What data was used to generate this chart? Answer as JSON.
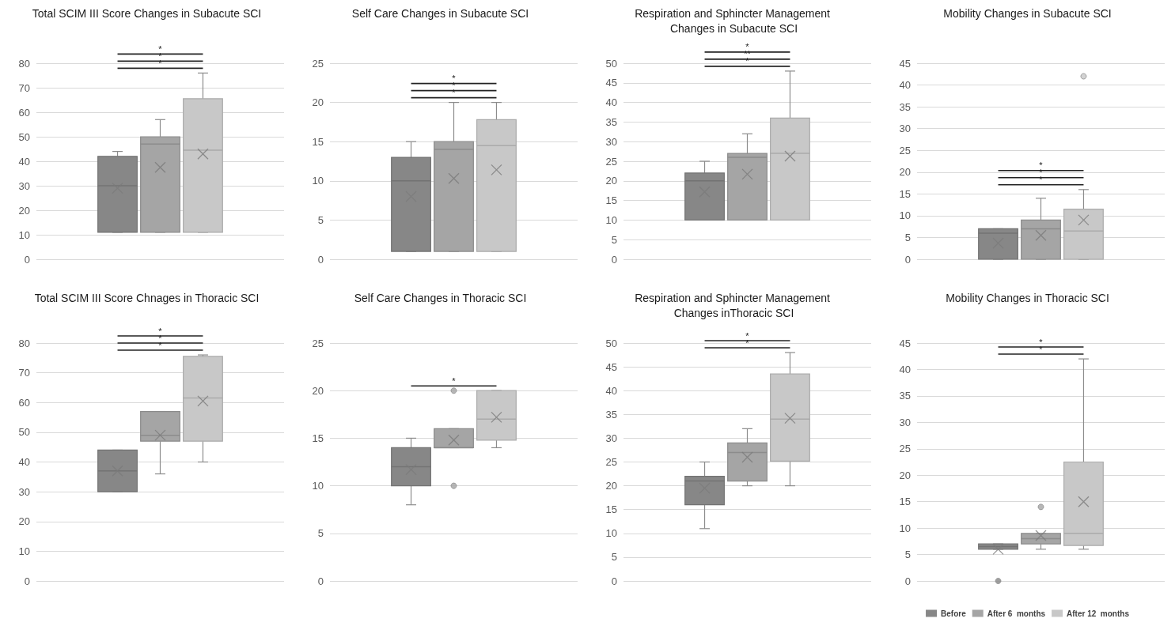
{
  "chart_data": [
    {
      "type": "box",
      "title": "Total SCIM III Score Changes in Subacute SCI",
      "categories": [
        null
      ],
      "ylim": [
        0,
        80
      ],
      "yticks": [
        0,
        10,
        20,
        30,
        40,
        50,
        60,
        70,
        80
      ],
      "grid": "y",
      "series": [
        {
          "color": "#878787",
          "boxes": [
            {
              "low": 11,
              "q1": 11,
              "median": 30,
              "q3": 42,
              "high": 44,
              "mean": 29
            }
          ]
        },
        {
          "color": "#a5a5a5",
          "boxes": [
            {
              "low": 11,
              "q1": 11,
              "median": 47,
              "q3": 50,
              "high": 57,
              "mean": 37.5
            }
          ]
        },
        {
          "color": "#c8c8c8",
          "boxes": [
            {
              "low": 11,
              "q1": 11,
              "median": 44.5,
              "q3": 65.5,
              "high": 76,
              "mean": 43
            }
          ]
        }
      ],
      "annotations": [
        "*",
        "*",
        "*"
      ]
    },
    {
      "type": "box",
      "title": "Self Care Changes in Subacute SCI",
      "categories": [
        null
      ],
      "ylim": [
        0,
        25
      ],
      "yticks": [
        0,
        5,
        10,
        15,
        20,
        25
      ],
      "grid": "y",
      "series": [
        {
          "color": "#878787",
          "boxes": [
            {
              "low": 1,
              "q1": 1,
              "median": 10,
              "q3": 13,
              "high": 15,
              "mean": 8
            }
          ]
        },
        {
          "color": "#a5a5a5",
          "boxes": [
            {
              "low": 1,
              "q1": 1,
              "median": 14,
              "q3": 15,
              "high": 20,
              "mean": 10.3
            }
          ]
        },
        {
          "color": "#c8c8c8",
          "boxes": [
            {
              "low": 1,
              "q1": 1,
              "median": 14.5,
              "q3": 17.8,
              "high": 20,
              "mean": 11.4
            }
          ]
        }
      ],
      "annotations": [
        "*",
        "*",
        "*"
      ]
    },
    {
      "type": "box",
      "title": "Respiration and Sphincter Management Changes in Subacute SCI",
      "categories": [
        null
      ],
      "ylim": [
        0,
        50
      ],
      "yticks": [
        0,
        5,
        10,
        15,
        20,
        25,
        30,
        35,
        40,
        45,
        50
      ],
      "grid": "y",
      "series": [
        {
          "color": "#878787",
          "boxes": [
            {
              "low": 10,
              "q1": 10,
              "median": 20,
              "q3": 22,
              "high": 25,
              "mean": 17.2
            }
          ]
        },
        {
          "color": "#a5a5a5",
          "boxes": [
            {
              "low": 10,
              "q1": 10,
              "median": 26,
              "q3": 27,
              "high": 32,
              "mean": 21.7
            }
          ]
        },
        {
          "color": "#c8c8c8",
          "boxes": [
            {
              "low": 10,
              "q1": 10,
              "median": 27,
              "q3": 36,
              "high": 48,
              "mean": 26.3
            }
          ]
        }
      ],
      "annotations": [
        "*",
        "**",
        "*"
      ]
    },
    {
      "type": "box",
      "title": "Mobility Changes in Subacute SCI",
      "categories": [
        null
      ],
      "ylim": [
        0,
        45
      ],
      "yticks": [
        0,
        5,
        10,
        15,
        20,
        25,
        30,
        35,
        40,
        45
      ],
      "grid": "y",
      "series": [
        {
          "color": "#878787",
          "boxes": [
            {
              "low": 0,
              "q1": 0,
              "median": 6,
              "q3": 7,
              "high": 7,
              "mean": 3.7
            }
          ]
        },
        {
          "color": "#a5a5a5",
          "boxes": [
            {
              "low": 0,
              "q1": 0,
              "median": 7,
              "q3": 9,
              "high": 14,
              "mean": 5.5
            }
          ]
        },
        {
          "color": "#c8c8c8",
          "boxes": [
            {
              "low": 0,
              "q1": 0,
              "median": 6.5,
              "q3": 11.5,
              "high": 16,
              "mean": 9,
              "outliers": [
                42
              ]
            }
          ]
        }
      ],
      "annotations": [
        "*",
        "*",
        "*"
      ]
    },
    {
      "type": "box",
      "title": "Total SCIM III Score Chnages in Thoracic SCI",
      "categories": [
        null
      ],
      "ylim": [
        0,
        80
      ],
      "yticks": [
        0,
        10,
        20,
        30,
        40,
        50,
        60,
        70,
        80
      ],
      "grid": "y",
      "series": [
        {
          "color": "#878787",
          "boxes": [
            {
              "low": 30,
              "q1": 30,
              "median": 37,
              "q3": 44,
              "high": 44,
              "mean": 37
            }
          ]
        },
        {
          "color": "#a5a5a5",
          "boxes": [
            {
              "low": 36,
              "q1": 47,
              "median": 49,
              "q3": 57,
              "high": 57,
              "mean": 49
            }
          ]
        },
        {
          "color": "#c8c8c8",
          "boxes": [
            {
              "low": 40,
              "q1": 47,
              "median": 61.5,
              "q3": 75.5,
              "high": 76,
              "mean": 60.5
            }
          ]
        }
      ],
      "annotations": [
        "*",
        "*",
        "*"
      ]
    },
    {
      "type": "box",
      "title": "Self Care Changes in Thoracic SCI",
      "categories": [
        null
      ],
      "ylim": [
        0,
        25
      ],
      "yticks": [
        0,
        5,
        10,
        15,
        20,
        25
      ],
      "grid": "y",
      "series": [
        {
          "color": "#878787",
          "boxes": [
            {
              "low": 8,
              "q1": 10,
              "median": 12,
              "q3": 14,
              "high": 15,
              "mean": 11.7
            }
          ]
        },
        {
          "color": "#a5a5a5",
          "boxes": [
            {
              "low": 14,
              "q1": 14,
              "median": 14,
              "q3": 16,
              "high": 16,
              "mean": 14.8,
              "outliers": [
                10,
                20
              ]
            }
          ]
        },
        {
          "color": "#c8c8c8",
          "boxes": [
            {
              "low": 14,
              "q1": 14.8,
              "median": 17,
              "q3": 20,
              "high": 20,
              "mean": 17.2
            }
          ]
        }
      ],
      "annotations": [
        "*"
      ]
    },
    {
      "type": "box",
      "title": "Respiration and Sphincter Management Changes inThoracic SCI",
      "categories": [
        null
      ],
      "ylim": [
        0,
        50
      ],
      "yticks": [
        0,
        5,
        10,
        15,
        20,
        25,
        30,
        35,
        40,
        45,
        50
      ],
      "grid": "y",
      "series": [
        {
          "color": "#878787",
          "boxes": [
            {
              "low": 11,
              "q1": 16,
              "median": 21,
              "q3": 22,
              "high": 25,
              "mean": 19.5
            }
          ]
        },
        {
          "color": "#a5a5a5",
          "boxes": [
            {
              "low": 20,
              "q1": 21,
              "median": 27,
              "q3": 29,
              "high": 32,
              "mean": 26
            }
          ]
        },
        {
          "color": "#c8c8c8",
          "boxes": [
            {
              "low": 20,
              "q1": 25.2,
              "median": 34,
              "q3": 43.5,
              "high": 48,
              "mean": 34.2
            }
          ]
        }
      ],
      "annotations": [
        "*",
        "*"
      ]
    },
    {
      "type": "box",
      "title": "Mobility Changes in Thoracic SCI",
      "categories": [
        null
      ],
      "ylim": [
        0,
        45
      ],
      "yticks": [
        0,
        5,
        10,
        15,
        20,
        25,
        30,
        35,
        40,
        45
      ],
      "grid": "y",
      "legend": "bottom",
      "series": [
        {
          "name": "Before",
          "color": "#878787",
          "boxes": [
            {
              "low": 6,
              "q1": 6,
              "median": 6.5,
              "q3": 7,
              "high": 7,
              "mean": 6,
              "outliers": [
                0
              ]
            }
          ]
        },
        {
          "name": "After 6  months",
          "color": "#a5a5a5",
          "boxes": [
            {
              "low": 6,
              "q1": 7,
              "median": 8,
              "q3": 9,
              "high": 9,
              "mean": 8.6,
              "outliers": [
                14
              ]
            }
          ]
        },
        {
          "name": "After 12  months",
          "color": "#c8c8c8",
          "boxes": [
            {
              "low": 6,
              "q1": 6.7,
              "median": 9,
              "q3": 22.5,
              "high": 42,
              "mean": 15
            }
          ]
        }
      ],
      "annotations": [
        "*",
        "*"
      ]
    }
  ]
}
